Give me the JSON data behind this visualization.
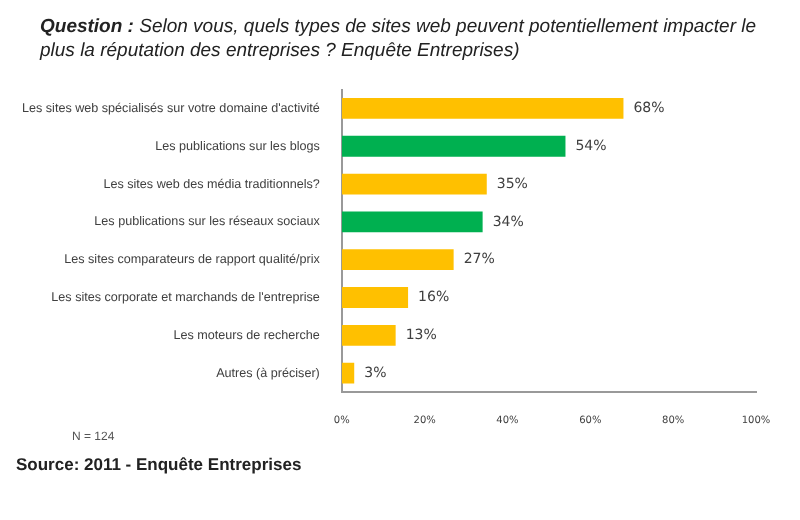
{
  "chart_data": {
    "type": "bar",
    "orientation": "horizontal",
    "title": "Question : Selon vous, quels types de sites web peuvent potentiellement impacter le plus la réputation des entreprises ? Enquête Entreprises)",
    "categories": [
      "Les sites web spécialisés sur votre domaine d'activité",
      "Les publications sur les blogs",
      "Les sites web des média traditionnels?",
      "Les publications sur les réseaux sociaux",
      "Les sites comparateurs de rapport qualité/prix",
      "Les sites corporate et marchands de l'entreprise",
      "Les moteurs de recherche",
      "Autres (à préciser)"
    ],
    "values": [
      68,
      54,
      35,
      34,
      27,
      16,
      13,
      3
    ],
    "colors": [
      "#ffc000",
      "#00b050",
      "#ffc000",
      "#00b050",
      "#ffc000",
      "#ffc000",
      "#ffc000",
      "#ffc000"
    ],
    "value_labels": [
      "68%",
      "54%",
      "35%",
      "34%",
      "27%",
      "16%",
      "13%",
      "3%"
    ],
    "xlim": [
      0,
      100
    ],
    "xticks": [
      {
        "value": 0,
        "label": "0%"
      },
      {
        "value": 20,
        "label": "20%"
      },
      {
        "value": 40,
        "label": "40%"
      },
      {
        "value": 60,
        "label": "60%"
      },
      {
        "value": 80,
        "label": "80%"
      },
      {
        "value": 100,
        "label": "100%"
      }
    ],
    "grid": false,
    "legend": false,
    "annotations": [
      "N = 124",
      "Source: 2011 - Enquête Entreprises"
    ]
  }
}
